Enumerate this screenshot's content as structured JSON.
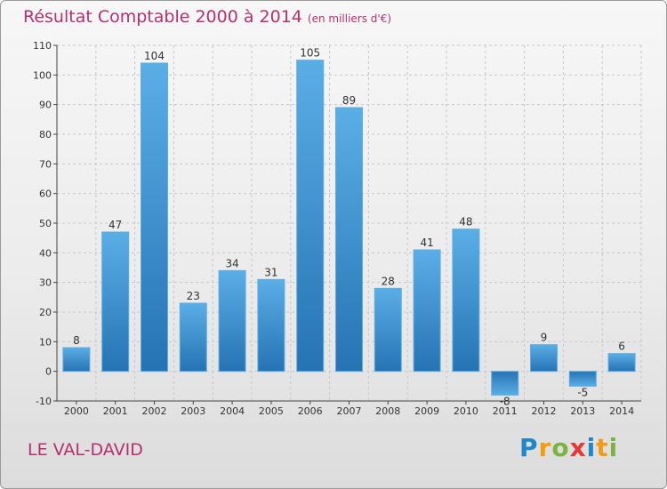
{
  "header": {
    "title": "Résultat Comptable 2000 à 2014",
    "subtitle": "(en milliers d'€)"
  },
  "footer": {
    "commune": "LE VAL-DAVID",
    "logo_letters": [
      "P",
      "r",
      "o",
      "x",
      "i",
      "t",
      "i"
    ]
  },
  "colors": {
    "bar": "#2e86c8",
    "title": "#b5306e"
  },
  "chart_data": {
    "type": "bar",
    "categories": [
      "2000",
      "2001",
      "2002",
      "2003",
      "2004",
      "2005",
      "2006",
      "2007",
      "2008",
      "2009",
      "2010",
      "2011",
      "2012",
      "2013",
      "2014"
    ],
    "values": [
      8,
      47,
      104,
      23,
      34,
      31,
      105,
      89,
      28,
      41,
      48,
      -8,
      9,
      -5,
      6
    ],
    "ylim": [
      -10,
      110
    ],
    "yticks": [
      -10,
      0,
      10,
      20,
      30,
      40,
      50,
      60,
      70,
      80,
      90,
      100,
      110
    ],
    "grid": true
  }
}
